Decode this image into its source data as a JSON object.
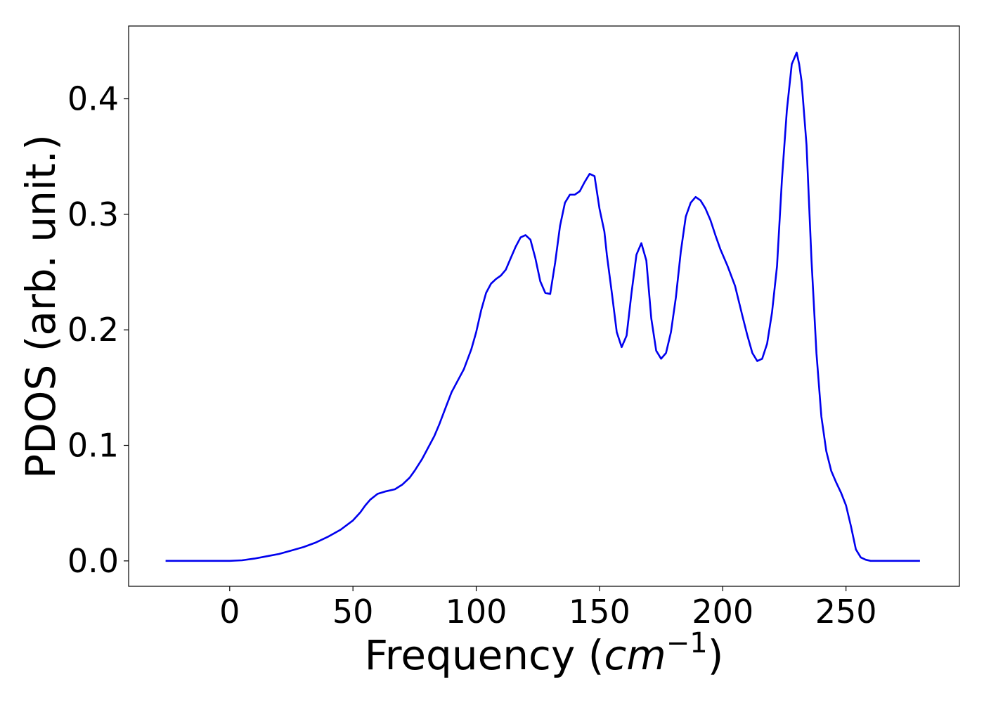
{
  "chart_data": {
    "type": "line",
    "title": "",
    "xlabel_parts": {
      "prefix": "Frequency (",
      "math": "cm",
      "sup": "−1",
      "suffix": ")"
    },
    "ylabel": "PDOS (arb. unit.)",
    "xlim": [
      -41,
      296
    ],
    "ylim": [
      -0.022,
      0.463
    ],
    "xticks": [
      0,
      50,
      100,
      150,
      200,
      250
    ],
    "xtick_labels": [
      "0",
      "50",
      "100",
      "150",
      "200",
      "250"
    ],
    "yticks": [
      0.0,
      0.1,
      0.2,
      0.3,
      0.4
    ],
    "ytick_labels": [
      "0.0",
      "0.1",
      "0.2",
      "0.3",
      "0.4"
    ],
    "grid": false,
    "legend": "none",
    "series": [
      {
        "color": "#0000ee",
        "x": [
          -26,
          -10,
          0,
          5,
          10,
          15,
          20,
          25,
          30,
          35,
          40,
          45,
          50,
          53,
          55,
          57,
          60,
          63,
          67,
          70,
          73,
          75,
          78,
          80,
          83,
          85,
          88,
          90,
          93,
          95,
          98,
          100,
          102,
          104,
          106,
          108,
          110,
          112,
          114,
          116,
          118,
          120,
          122,
          124,
          126,
          128,
          130,
          132,
          134,
          136,
          138,
          140,
          142,
          144,
          146,
          148,
          150,
          152,
          153,
          155,
          157,
          159,
          161,
          163,
          165,
          167,
          169,
          171,
          173,
          175,
          177,
          179,
          181,
          183,
          185,
          187,
          189,
          191,
          193,
          195,
          197,
          199,
          202,
          205,
          208,
          210,
          212,
          214,
          216,
          218,
          220,
          222,
          224,
          226,
          228,
          230,
          231,
          232,
          234,
          236,
          238,
          240,
          242,
          244,
          246,
          248,
          250,
          252,
          254,
          256,
          258,
          260,
          265,
          280
        ],
        "y": [
          0.0,
          0.0,
          0.0,
          0.0005,
          0.002,
          0.004,
          0.006,
          0.009,
          0.012,
          0.016,
          0.021,
          0.027,
          0.035,
          0.042,
          0.048,
          0.053,
          0.058,
          0.06,
          0.062,
          0.066,
          0.072,
          0.078,
          0.088,
          0.096,
          0.108,
          0.118,
          0.135,
          0.146,
          0.158,
          0.166,
          0.183,
          0.198,
          0.217,
          0.232,
          0.24,
          0.244,
          0.247,
          0.252,
          0.262,
          0.272,
          0.28,
          0.282,
          0.278,
          0.262,
          0.242,
          0.232,
          0.231,
          0.258,
          0.29,
          0.31,
          0.317,
          0.317,
          0.32,
          0.328,
          0.335,
          0.333,
          0.305,
          0.285,
          0.265,
          0.232,
          0.198,
          0.185,
          0.195,
          0.232,
          0.265,
          0.275,
          0.26,
          0.21,
          0.182,
          0.175,
          0.18,
          0.198,
          0.228,
          0.268,
          0.298,
          0.31,
          0.315,
          0.312,
          0.305,
          0.295,
          0.282,
          0.27,
          0.255,
          0.238,
          0.212,
          0.195,
          0.18,
          0.173,
          0.175,
          0.188,
          0.215,
          0.255,
          0.33,
          0.39,
          0.43,
          0.44,
          0.43,
          0.415,
          0.36,
          0.26,
          0.18,
          0.125,
          0.095,
          0.078,
          0.068,
          0.059,
          0.048,
          0.03,
          0.01,
          0.003,
          0.001,
          0.0,
          0.0,
          0.0
        ]
      }
    ]
  }
}
